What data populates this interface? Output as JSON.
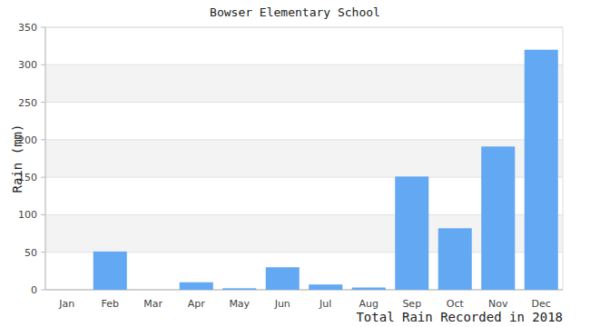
{
  "chart_data": {
    "type": "bar",
    "title": "Bowser Elementary School",
    "y_label": "Rain (mm)",
    "x_label": "Total Rain Recorded in 2018",
    "categories": [
      "Jan",
      "Feb",
      "Mar",
      "Apr",
      "May",
      "Jun",
      "Jul",
      "Aug",
      "Sep",
      "Oct",
      "Nov",
      "Dec"
    ],
    "values": [
      0,
      51,
      0,
      10,
      2,
      30,
      7,
      3,
      151,
      82,
      191,
      320
    ],
    "color": "#62a8f2",
    "ylim": [
      0,
      350
    ],
    "yticks": [
      0,
      50,
      100,
      150,
      200,
      250,
      300,
      350
    ],
    "grid": true
  }
}
